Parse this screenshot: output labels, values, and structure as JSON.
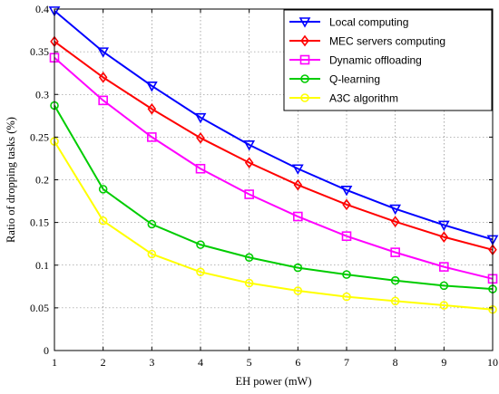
{
  "chart_data": {
    "type": "line",
    "title": "",
    "xlabel": "EH power (mW)",
    "ylabel": "Ratio of  dropping tasks (%)",
    "xlim": [
      1,
      10
    ],
    "ylim": [
      0,
      0.4
    ],
    "grid": true,
    "legend_position": "top-right",
    "x": [
      1,
      2,
      3,
      4,
      5,
      6,
      7,
      8,
      9,
      10
    ],
    "x_ticks": [
      "1",
      "2",
      "3",
      "4",
      "5",
      "6",
      "7",
      "8",
      "9",
      "10"
    ],
    "y_ticks": [
      "0",
      "0.05",
      "0.1",
      "0.15",
      "0.2",
      "0.25",
      "0.3",
      "0.35",
      "0.4"
    ],
    "series": [
      {
        "name": "Local computing",
        "color": "#0000ff",
        "marker": "triangle-down",
        "values": [
          0.398,
          0.35,
          0.31,
          0.273,
          0.241,
          0.213,
          0.188,
          0.166,
          0.147,
          0.13
        ]
      },
      {
        "name": "MEC servers computing",
        "color": "#ff0000",
        "marker": "diamond",
        "values": [
          0.362,
          0.32,
          0.283,
          0.249,
          0.22,
          0.194,
          0.171,
          0.151,
          0.133,
          0.118
        ]
      },
      {
        "name": "Dynamic offloading",
        "color": "#ff00ff",
        "marker": "square",
        "values": [
          0.343,
          0.293,
          0.25,
          0.213,
          0.183,
          0.157,
          0.134,
          0.115,
          0.098,
          0.084
        ]
      },
      {
        "name": "Q-learning",
        "color": "#00cc00",
        "marker": "circle",
        "values": [
          0.287,
          0.189,
          0.148,
          0.124,
          0.109,
          0.097,
          0.089,
          0.082,
          0.076,
          0.072
        ]
      },
      {
        "name": "A3C algorithm",
        "color": "#ffff00",
        "marker": "circle",
        "values": [
          0.245,
          0.152,
          0.113,
          0.092,
          0.079,
          0.07,
          0.063,
          0.058,
          0.053,
          0.048
        ]
      }
    ]
  }
}
